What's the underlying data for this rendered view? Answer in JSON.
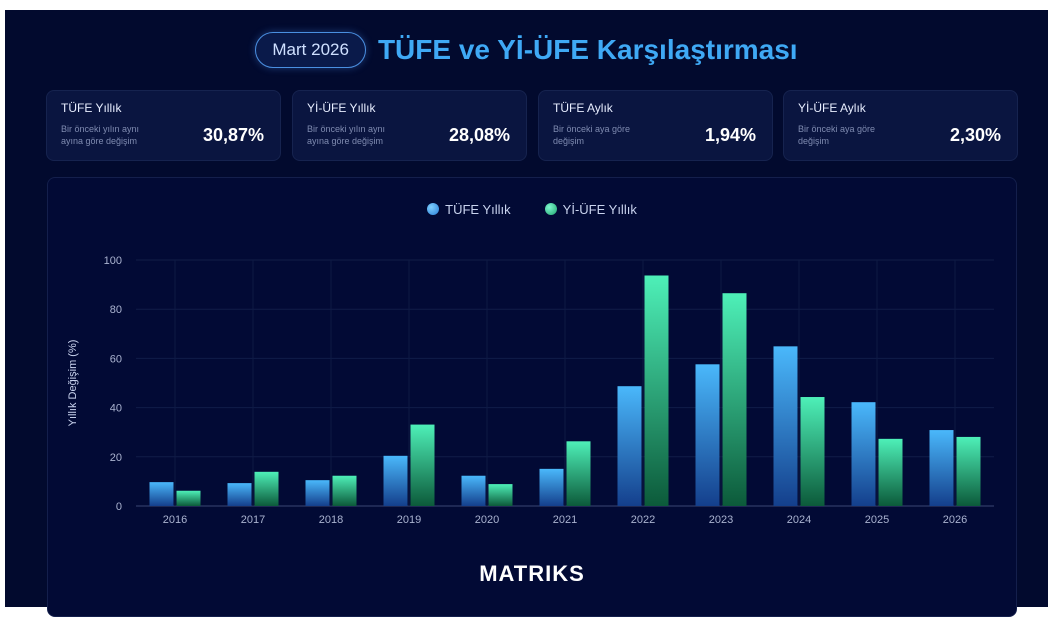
{
  "header": {
    "period": "Mart 2026",
    "title": "TÜFE ve Yİ-ÜFE Karşılaştırması"
  },
  "cards": [
    {
      "label": "TÜFE Yıllık",
      "sub": "Bir önceki yılın aynı ayına göre değişim",
      "value": "30,87%"
    },
    {
      "label": "Yİ-ÜFE Yıllık",
      "sub": "Bir önceki yılın aynı ayına göre değişim",
      "value": "28,08%"
    },
    {
      "label": "TÜFE Aylık",
      "sub": "Bir önceki aya göre değişim",
      "value": "1,94%"
    },
    {
      "label": "Yİ-ÜFE Aylık",
      "sub": "Bir önceki aya göre değişim",
      "value": "2,30%"
    }
  ],
  "logo": "MATRIKS",
  "colors": {
    "background": "#020a2e",
    "tufe": "#4ab8fb",
    "yiufe": "#4ef0b8",
    "title": "#3fa9f5"
  },
  "chart_data": {
    "type": "bar",
    "categories": [
      "2016",
      "2017",
      "2018",
      "2019",
      "2020",
      "2021",
      "2022",
      "2023",
      "2024",
      "2025",
      "2026"
    ],
    "series": [
      {
        "name": "TÜFE Yıllık",
        "values": [
          9.7,
          9.3,
          10.5,
          20.4,
          12.3,
          15.1,
          48.7,
          57.6,
          64.9,
          42.2,
          30.87
        ]
      },
      {
        "name": "Yİ-ÜFE Yıllık",
        "values": [
          6.2,
          13.9,
          12.3,
          33.1,
          8.9,
          26.3,
          93.7,
          86.5,
          44.3,
          27.3,
          28.08
        ]
      }
    ],
    "ylabel": "Yıllık Değişim (%)",
    "xlabel": "",
    "ylim": [
      0,
      100
    ],
    "yticks": [
      0,
      20,
      40,
      60,
      80,
      100
    ],
    "grid": true,
    "legend": "top-center"
  }
}
